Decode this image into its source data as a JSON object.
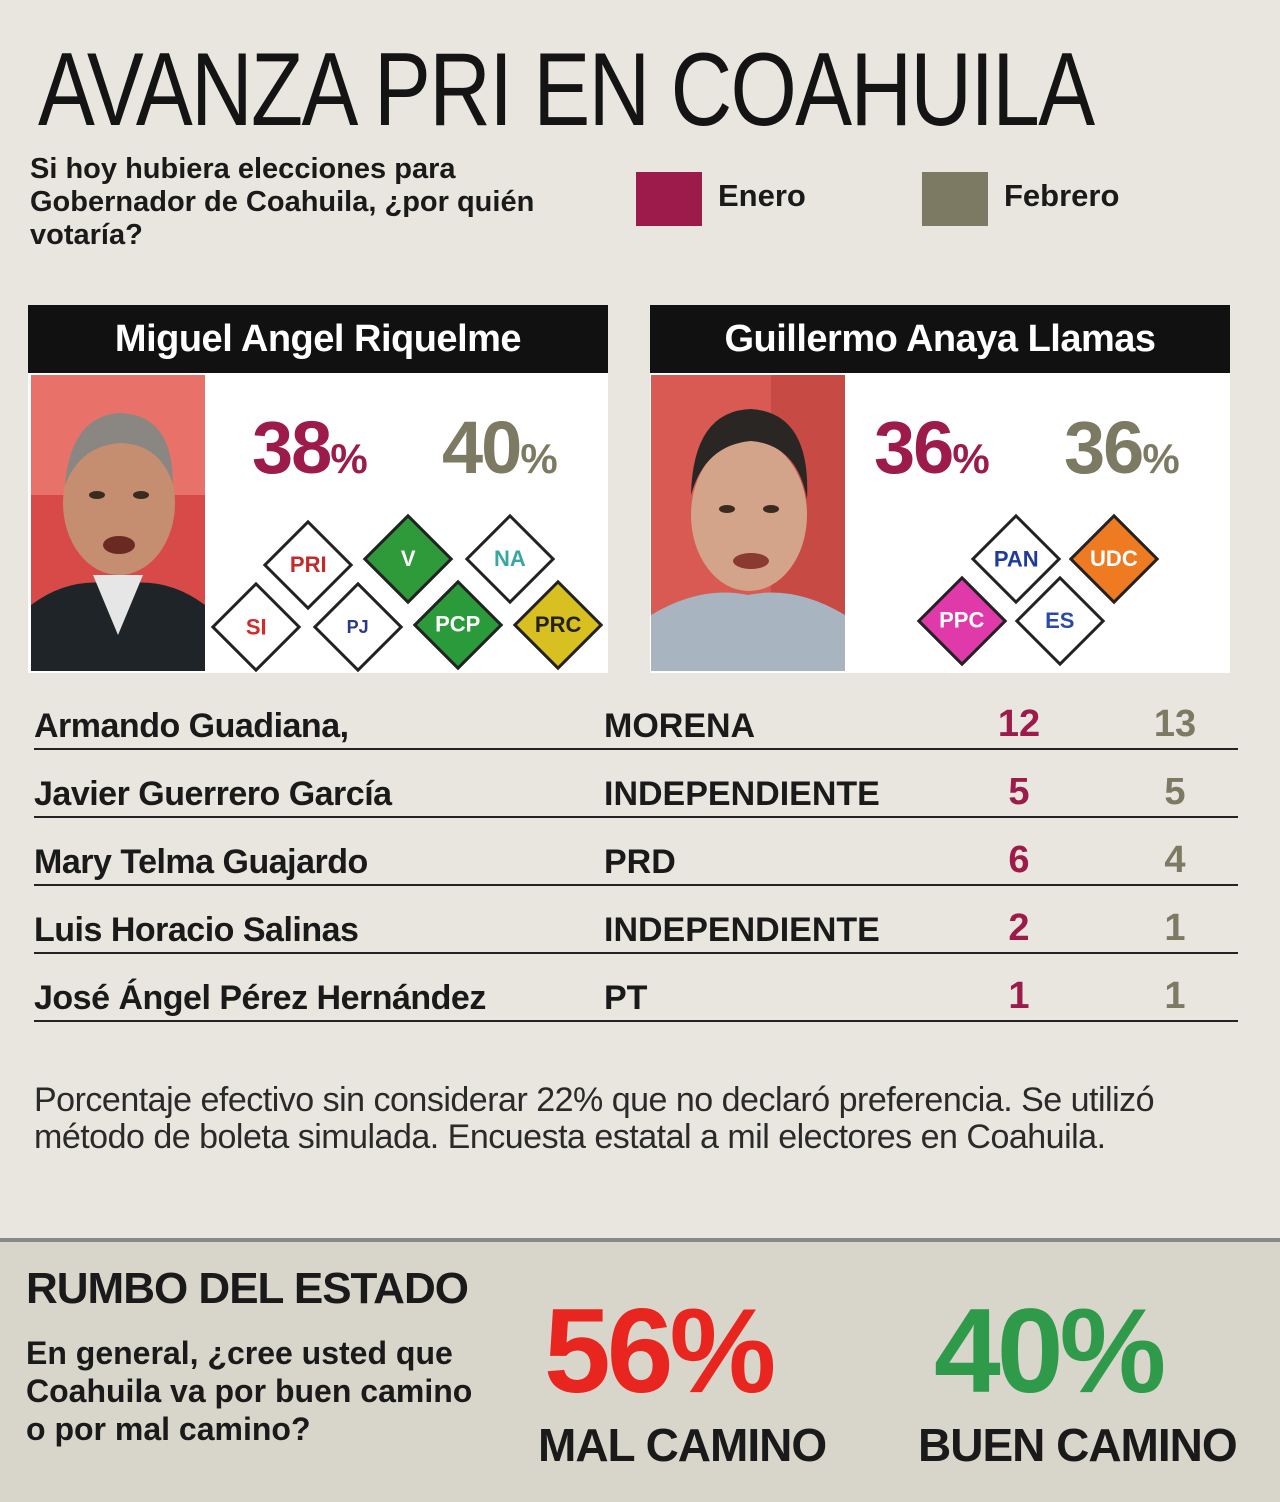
{
  "title": "AVANZA PRI EN COAHUILA",
  "question": "Si hoy hubiera elecciones para Gobernador de Coahuila, ¿por quién votaría?",
  "legend": [
    {
      "label": "Enero",
      "color": "#9c1b4a"
    },
    {
      "label": "Febrero",
      "color": "#7c7a62"
    }
  ],
  "chart_data": {
    "type": "table",
    "series": [
      {
        "name": "Enero",
        "color": "#9c1b4a"
      },
      {
        "name": "Febrero",
        "color": "#7c7a62"
      }
    ],
    "headline": [
      {
        "name": "Miguel Angel Riquelme",
        "values": [
          38,
          40
        ],
        "unit": "%",
        "logos": [
          "PRI",
          "V",
          "NA",
          "SI",
          "PJ",
          "PCP",
          "PRC"
        ]
      },
      {
        "name": "Guillermo Anaya Llamas",
        "values": [
          36,
          36
        ],
        "unit": "%",
        "logos": [
          "PAN",
          "UDC",
          "PPC",
          "ES"
        ]
      }
    ],
    "rows": [
      {
        "name": "Armando Guadiana,",
        "party": "MORENA",
        "values": [
          12,
          13
        ]
      },
      {
        "name": "Javier Guerrero García",
        "party": "INDEPENDIENTE",
        "values": [
          5,
          5
        ]
      },
      {
        "name": "Mary Telma Guajardo",
        "party": "PRD",
        "values": [
          6,
          4
        ]
      },
      {
        "name": "Luis Horacio Salinas",
        "party": "INDEPENDIENTE",
        "values": [
          2,
          1
        ]
      },
      {
        "name": "José Ángel Pérez Hernández",
        "party": "PT",
        "values": [
          1,
          1
        ]
      }
    ]
  },
  "note": "Porcentaje efectivo sin considerar 22% que no declaró preferencia. Se utilizó método de boleta simulada. Encuesta estatal a mil electores en Coahuila.",
  "rumbo": {
    "title": "RUMBO DEL ESTADO",
    "question": "En general, ¿cree usted que Coahuila va por buen camino o por mal camino?",
    "mal": {
      "value": "56%",
      "label": "MAL CAMINO",
      "color": "#e8261f"
    },
    "buen": {
      "value": "40%",
      "label": "BUEN CAMINO",
      "color": "#2f9a4a"
    }
  }
}
